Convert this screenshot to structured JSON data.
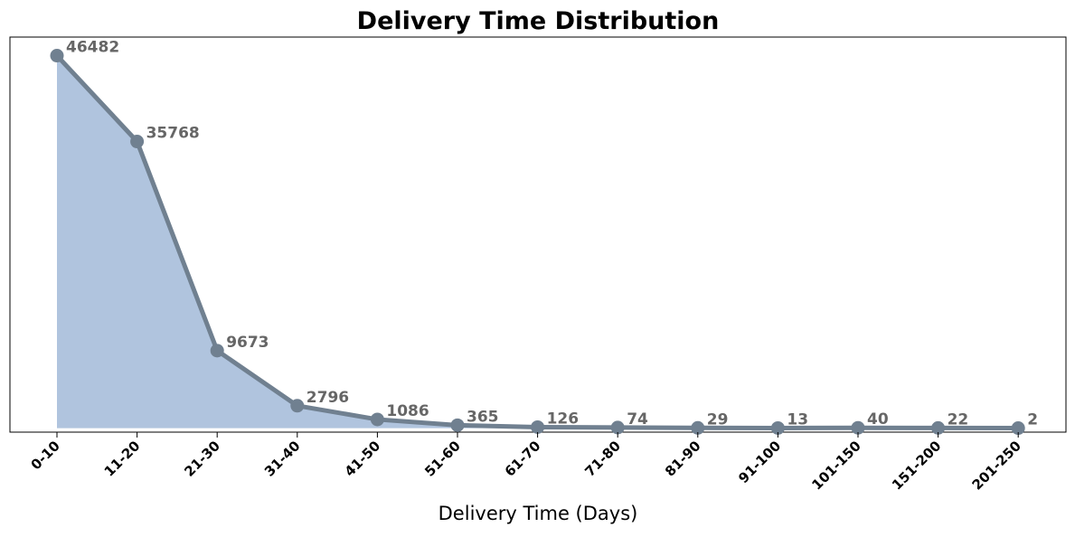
{
  "chart_data": {
    "type": "area",
    "title": "Delivery Time Distribution",
    "xlabel": "Delivery Time (Days)",
    "ylabel": "",
    "categories": [
      "0-10",
      "11-20",
      "21-30",
      "31-40",
      "41-50",
      "51-60",
      "61-70",
      "71-80",
      "81-90",
      "91-100",
      "101-150",
      "151-200",
      "201-250"
    ],
    "values": [
      46482,
      35768,
      9673,
      2796,
      1086,
      365,
      126,
      74,
      29,
      13,
      40,
      22,
      2
    ],
    "ylim": [
      -500,
      48800
    ],
    "y_ticks_visible": false,
    "grid": false,
    "legend": "none",
    "colors": {
      "line": "#708090",
      "fill": "#b0c4de",
      "label": "#666666",
      "axis": "#000000"
    }
  }
}
